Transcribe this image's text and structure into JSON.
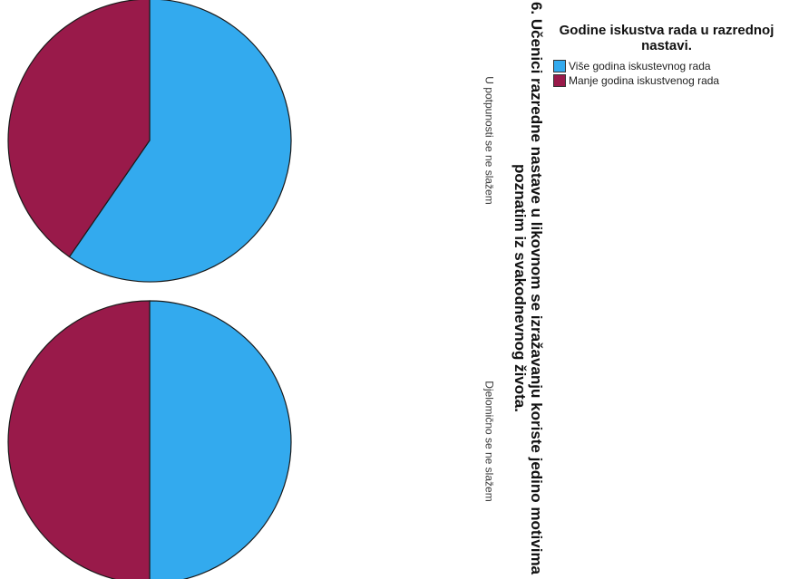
{
  "chart_data": {
    "type": "pie",
    "title": "6. Učenici razredne nastave u likovnom se izražavanju koriste jedino motivima poznatim iz svakodnevnog života.",
    "legend": {
      "title": "Godine iskustva rada u razrednoj nastavi.",
      "placement": "top-right"
    },
    "series": [
      {
        "name": "Više godina iskustevnog rada",
        "color": "#33aaee"
      },
      {
        "name": "Manje godina iskustvenog rada",
        "color": "#991a4a"
      }
    ],
    "panels": [
      {
        "label": "U potpunosti se ne slažem",
        "values": [
          59.6,
          40.4
        ]
      },
      {
        "label": "Djelomično se ne slažem",
        "values": [
          50,
          50
        ]
      }
    ]
  }
}
